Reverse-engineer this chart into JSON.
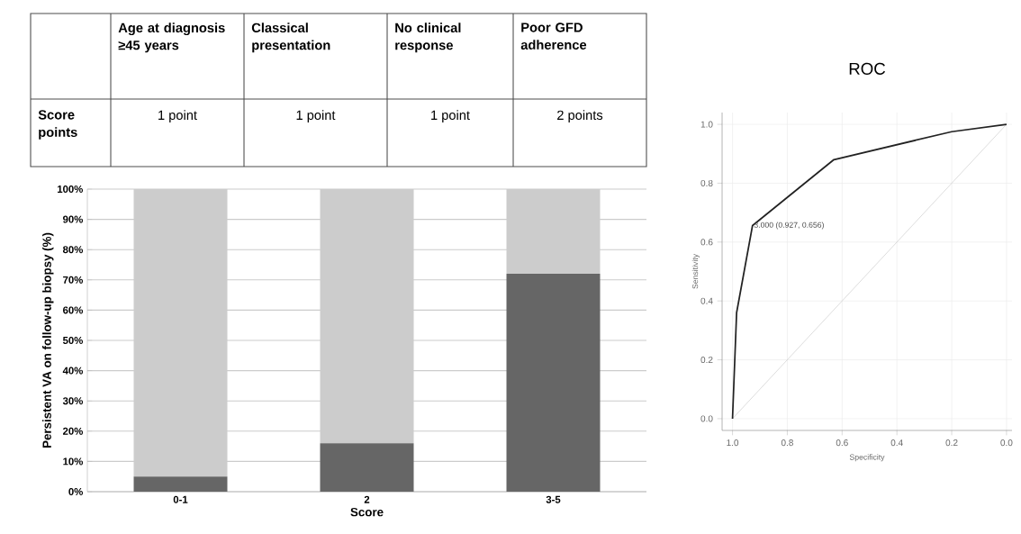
{
  "chart_data": [
    {
      "type": "other",
      "categories": [
        "Age at diagnosis ≥45 years",
        "Classical presentation",
        "No clinical response",
        "Poor GFD adherence"
      ],
      "y_categories": [
        "Score points"
      ],
      "cell_labels": [
        [
          "1 point",
          "1 point",
          "1 point",
          "2 points"
        ]
      ]
    },
    {
      "type": "bar",
      "stacked": true,
      "xlabel": "Score",
      "ylabel": "Persistent VA on follow-up biopsy (%)",
      "categories": [
        "0-1",
        "2",
        "3-5"
      ],
      "series": [
        {
          "color": "#666666",
          "values": [
            5,
            16,
            72
          ]
        },
        {
          "color": "#cccccc",
          "values": [
            95,
            84,
            28
          ]
        }
      ],
      "ylim": [
        0,
        100
      ],
      "yticks": [
        {
          "value": 0,
          "label": "0%"
        },
        {
          "value": 10,
          "label": "10%"
        },
        {
          "value": 20,
          "label": "20%"
        },
        {
          "value": 30,
          "label": "30%"
        },
        {
          "value": 40,
          "label": "40%"
        },
        {
          "value": 50,
          "label": "50%"
        },
        {
          "value": 60,
          "label": "60%"
        },
        {
          "value": 70,
          "label": "70%"
        },
        {
          "value": 80,
          "label": "80%"
        },
        {
          "value": 90,
          "label": "90%"
        },
        {
          "value": 100,
          "label": "100%"
        }
      ],
      "grid": "y"
    },
    {
      "type": "line",
      "title": "ROC",
      "xlabel": "Specificity",
      "ylabel": "Sensitivity",
      "series": [
        {
          "type": "line",
          "color": "#222222",
          "x": [
            1.0,
            0.985,
            0.927,
            0.63,
            0.2,
            0.0
          ],
          "values": [
            0.0,
            0.36,
            0.656,
            0.88,
            0.975,
            1.0
          ]
        },
        {
          "type": "line",
          "color": "#cccccc",
          "x": [
            1.0,
            0.0
          ],
          "values": [
            0.0,
            1.0
          ]
        }
      ],
      "xlim": [
        1.038,
        -0.02
      ],
      "ylim": [
        -0.04,
        1.04
      ],
      "xticks": [
        {
          "value": 1.0,
          "label": "1.0"
        },
        {
          "value": 0.8,
          "label": "0.8"
        },
        {
          "value": 0.6,
          "label": "0.6"
        },
        {
          "value": 0.4,
          "label": "0.4"
        },
        {
          "value": 0.2,
          "label": "0.2"
        },
        {
          "value": 0.0,
          "label": "0.0"
        }
      ],
      "yticks": [
        {
          "value": 0.0,
          "label": "0.0"
        },
        {
          "value": 0.2,
          "label": "0.2"
        },
        {
          "value": 0.4,
          "label": "0.4"
        },
        {
          "value": 0.6,
          "label": "0.6"
        },
        {
          "value": 0.8,
          "label": "0.8"
        },
        {
          "value": 1.0,
          "label": "1.0"
        }
      ],
      "annotations": [
        {
          "text": "3.000 (0.927, 0.656)",
          "x": 0.927,
          "y": 0.656
        }
      ],
      "grid": true,
      "marker": "none",
      "line_style": "solid"
    }
  ]
}
